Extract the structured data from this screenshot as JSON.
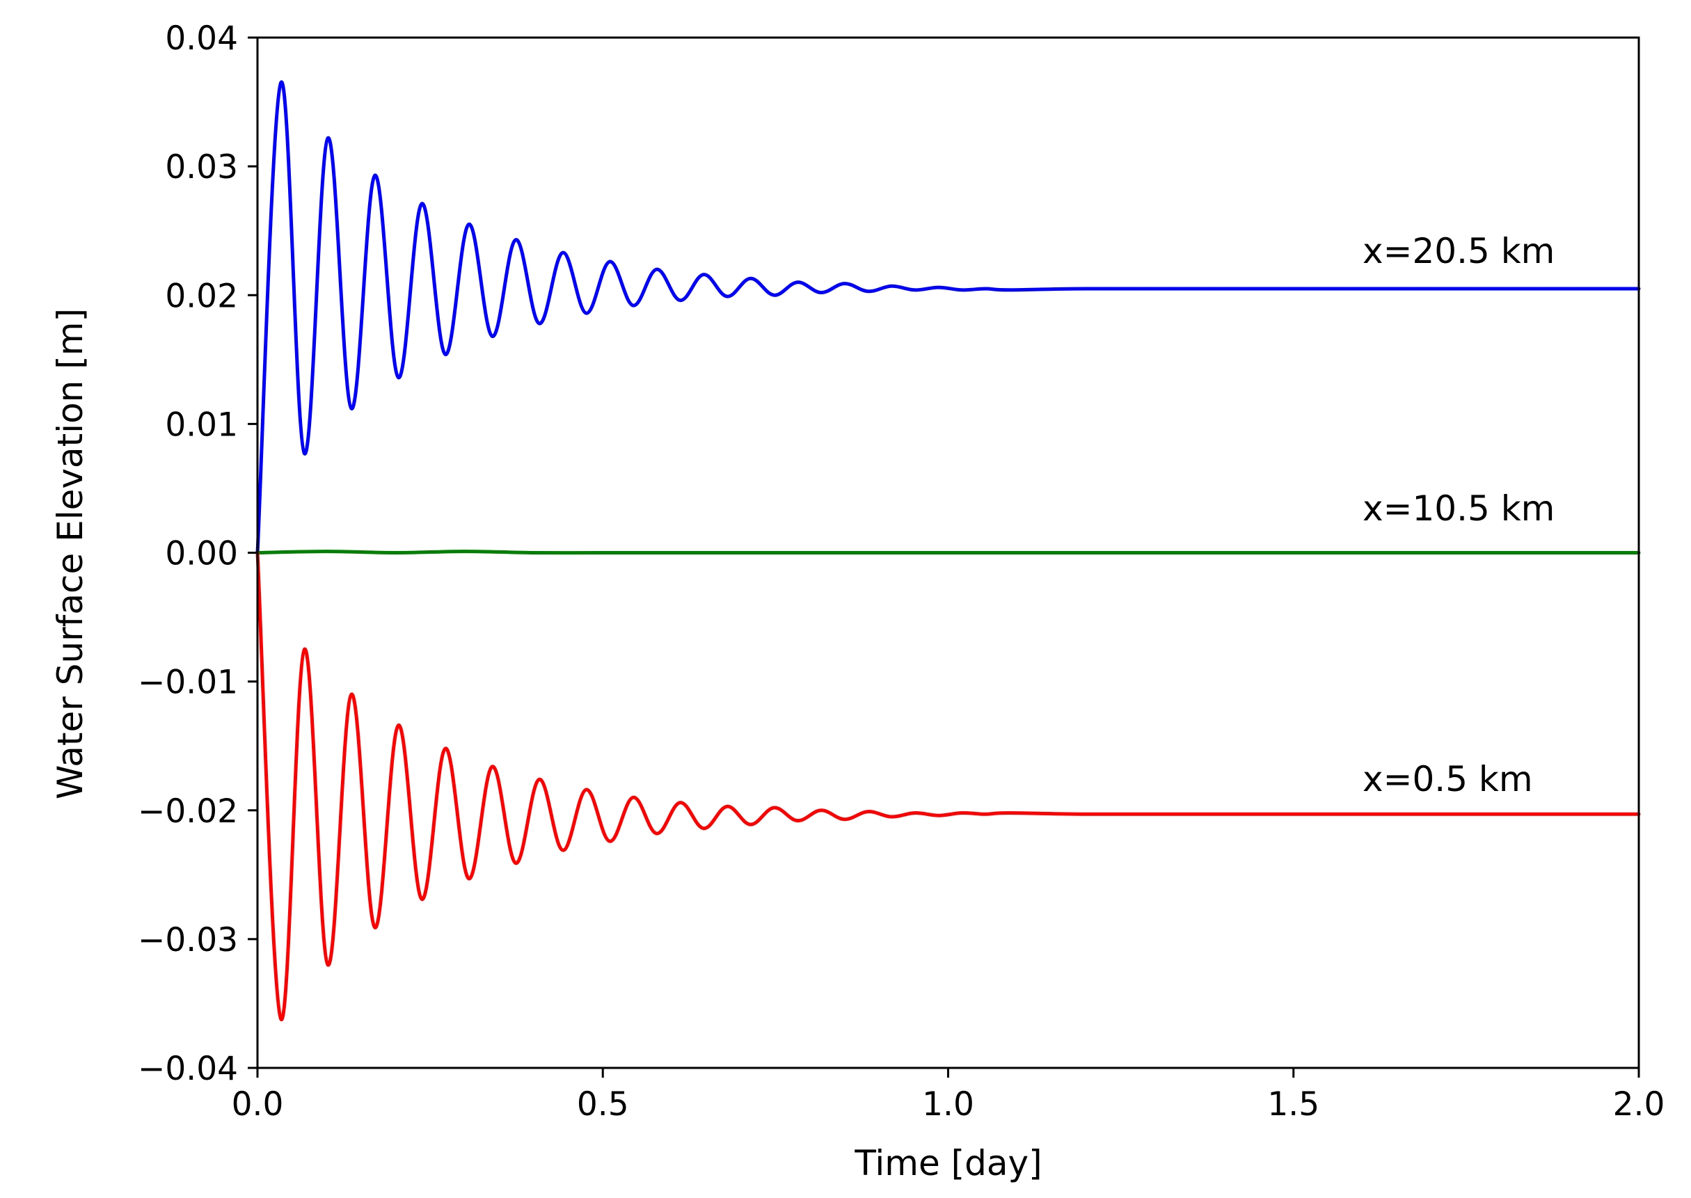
{
  "chart_data": {
    "type": "line",
    "title": "",
    "xlabel": "Time [day]",
    "ylabel": "Water Surface Elevation [m]",
    "xlim": [
      0.0,
      2.0
    ],
    "ylim": [
      -0.04,
      0.04
    ],
    "xticks": [
      0.0,
      0.5,
      1.0,
      1.5,
      2.0
    ],
    "xtick_labels": [
      "0.0",
      "0.5",
      "1.0",
      "1.5",
      "2.0"
    ],
    "yticks": [
      0.04,
      0.03,
      0.02,
      0.01,
      0.0,
      -0.01,
      -0.02,
      -0.03,
      -0.04
    ],
    "ytick_labels": [
      "0.04",
      "0.03",
      "0.02",
      "0.01",
      "0.00",
      "−0.01",
      "−0.02",
      "−0.03",
      "−0.04"
    ],
    "grid": false,
    "legend": "none",
    "annotations": [
      {
        "text": "x=20.5 km",
        "x": 1.6,
        "y": 0.0225
      },
      {
        "text": "x=10.5 km",
        "x": 1.6,
        "y": 0.0025
      },
      {
        "text": "x=0.5 km",
        "x": 1.6,
        "y": -0.0185
      }
    ],
    "series": [
      {
        "color": "#0000ff",
        "x": [
          0.0,
          0.034,
          0.068,
          0.102,
          0.136,
          0.17,
          0.204,
          0.238,
          0.272,
          0.306,
          0.34,
          0.374,
          0.408,
          0.442,
          0.476,
          0.51,
          0.544,
          0.578,
          0.612,
          0.646,
          0.68,
          0.714,
          0.748,
          0.782,
          0.816,
          0.85,
          0.884,
          0.918,
          0.952,
          0.986,
          1.02,
          1.054,
          1.088,
          1.2,
          1.4,
          1.6,
          1.8,
          2.0
        ],
        "y": [
          0.0,
          0.0365,
          0.0077,
          0.0322,
          0.0112,
          0.0293,
          0.0136,
          0.0271,
          0.0154,
          0.0255,
          0.0168,
          0.0243,
          0.0178,
          0.0233,
          0.0186,
          0.0226,
          0.0192,
          0.022,
          0.0196,
          0.0216,
          0.0199,
          0.0213,
          0.02,
          0.021,
          0.0202,
          0.0209,
          0.0203,
          0.0207,
          0.0204,
          0.0206,
          0.0204,
          0.0205,
          0.0204,
          0.0205,
          0.0205,
          0.0205,
          0.0205,
          0.0205
        ]
      },
      {
        "color": "#008000",
        "x": [
          0.0,
          0.1,
          0.2,
          0.3,
          0.4,
          0.5,
          0.6,
          0.8,
          1.0,
          1.2,
          1.4,
          1.6,
          1.8,
          2.0
        ],
        "y": [
          0.0,
          0.0001,
          0.0,
          0.0001,
          0.0,
          0.0,
          0.0,
          0.0,
          0.0,
          0.0,
          0.0,
          0.0,
          0.0,
          0.0
        ]
      },
      {
        "color": "#ff0000",
        "x": [
          0.0,
          0.034,
          0.068,
          0.102,
          0.136,
          0.17,
          0.204,
          0.238,
          0.272,
          0.306,
          0.34,
          0.374,
          0.408,
          0.442,
          0.476,
          0.51,
          0.544,
          0.578,
          0.612,
          0.646,
          0.68,
          0.714,
          0.748,
          0.782,
          0.816,
          0.85,
          0.884,
          0.918,
          0.952,
          0.986,
          1.02,
          1.054,
          1.088,
          1.2,
          1.4,
          1.6,
          1.8,
          2.0
        ],
        "y": [
          0.0,
          -0.0362,
          -0.0075,
          -0.032,
          -0.011,
          -0.0291,
          -0.0134,
          -0.0269,
          -0.0152,
          -0.0253,
          -0.0166,
          -0.0241,
          -0.0176,
          -0.0231,
          -0.0184,
          -0.0224,
          -0.019,
          -0.0218,
          -0.0194,
          -0.0214,
          -0.0197,
          -0.0211,
          -0.0198,
          -0.0208,
          -0.02,
          -0.0207,
          -0.0201,
          -0.0205,
          -0.0202,
          -0.0204,
          -0.0202,
          -0.0203,
          -0.0202,
          -0.0203,
          -0.0203,
          -0.0203,
          -0.0203,
          -0.0203
        ]
      }
    ]
  }
}
